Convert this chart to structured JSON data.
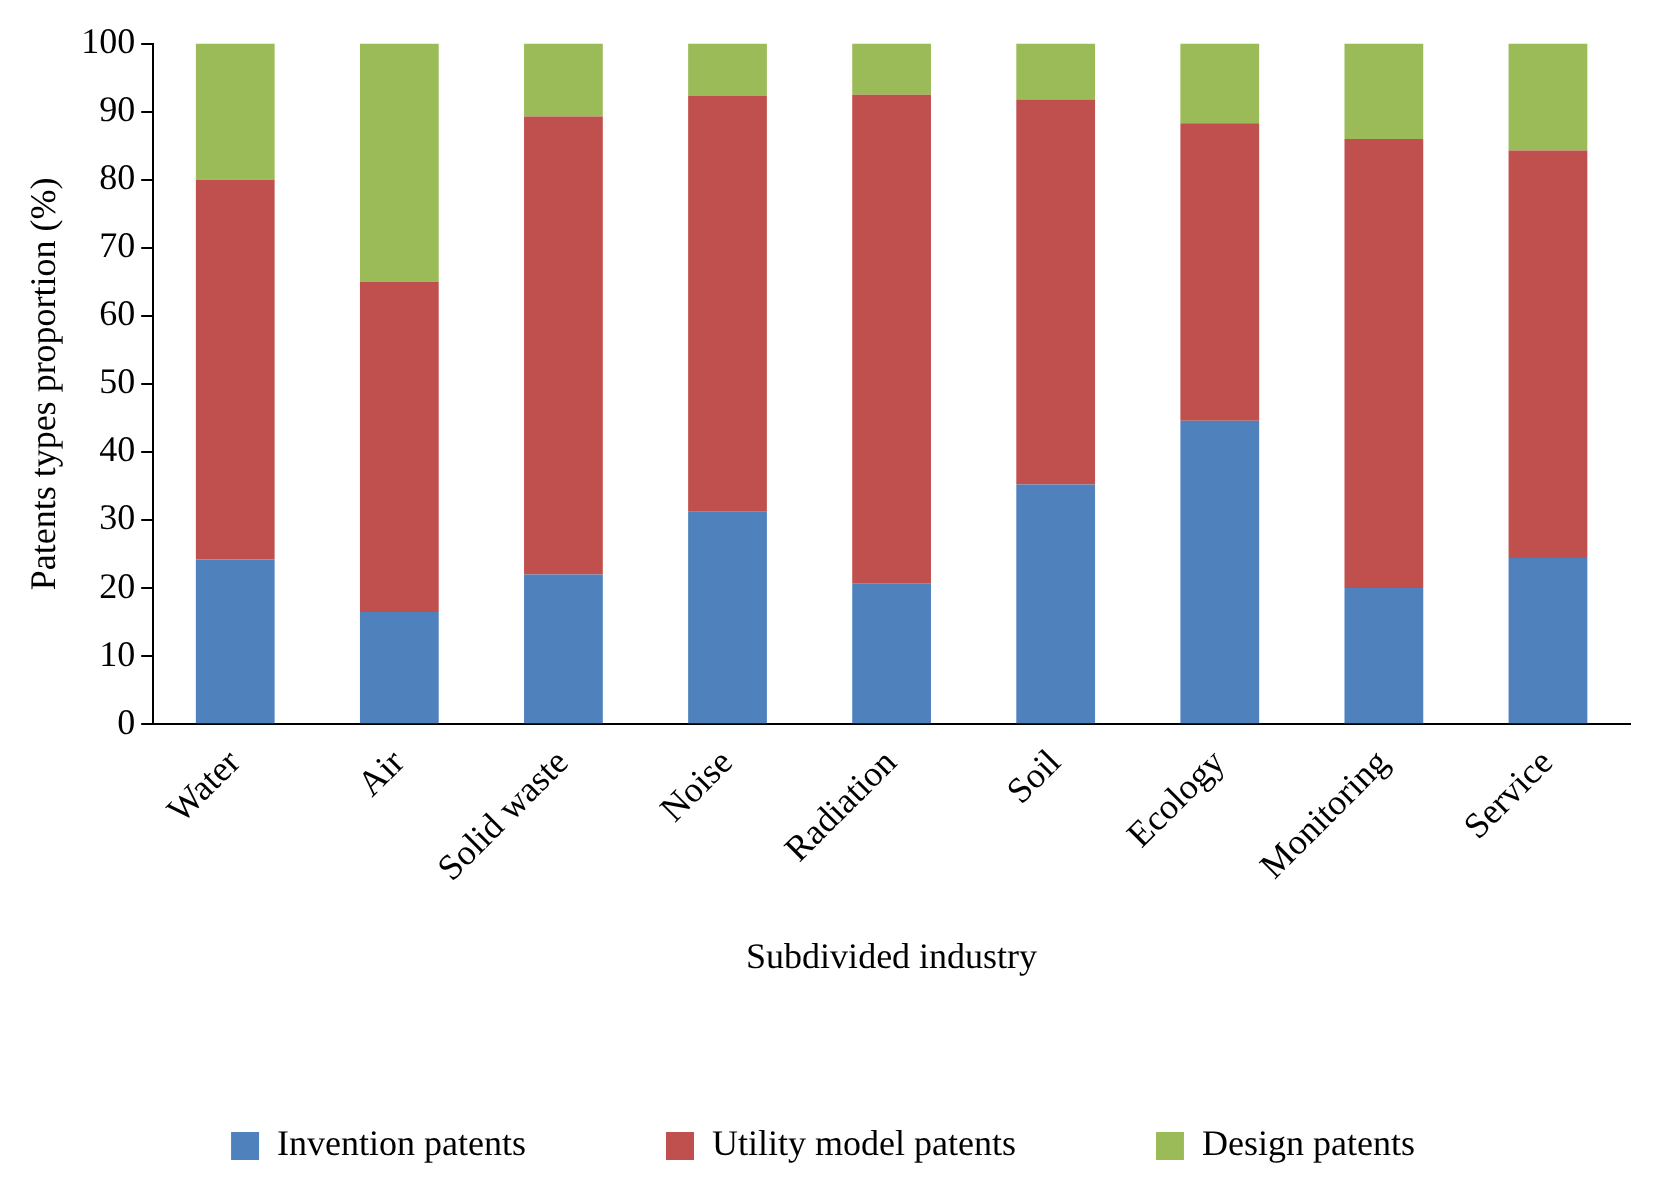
{
  "chart_data": {
    "type": "bar",
    "stacked": true,
    "xlabel": "Subdivided industry",
    "ylabel": "Patents types proportion (%)",
    "categories": [
      "Water",
      "Air",
      "Solid waste",
      "Noise",
      "Radiation",
      "Soil",
      "Ecology",
      "Monitoring",
      "Service"
    ],
    "series": [
      {
        "name": "Invention patents",
        "color": "#4f81bd",
        "values": [
          24.2,
          16.5,
          22,
          31.2,
          20.7,
          35.2,
          44.6,
          20,
          24.4
        ]
      },
      {
        "name": "Utility model patents",
        "color": "#c0504d",
        "values": [
          55.8,
          48.5,
          67.3,
          61.1,
          71.8,
          56.6,
          43.7,
          66,
          59.9
        ]
      },
      {
        "name": "Design patents",
        "color": "#9bbb59",
        "values": [
          20,
          35,
          10.7,
          7.7,
          7.5,
          8.2,
          11.7,
          14,
          15.7
        ]
      }
    ],
    "ylim": [
      0,
      100
    ],
    "yticks": [
      0,
      10,
      20,
      30,
      40,
      50,
      60,
      70,
      80,
      90,
      100
    ],
    "grid": false,
    "legend": "bottom"
  }
}
